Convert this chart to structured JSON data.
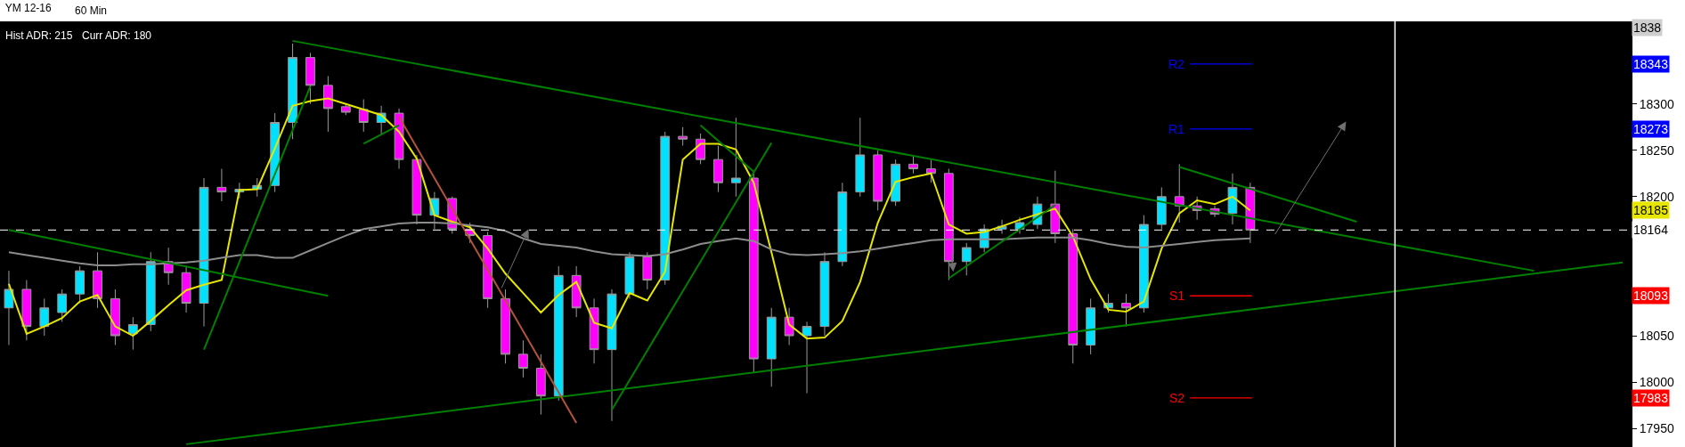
{
  "chart_data": {
    "type": "candlestick",
    "title": "YM 12-16",
    "subtitle": "60 Min",
    "categories": [
      null,
      null,
      null,
      null,
      null,
      null,
      null,
      null,
      null,
      null,
      null,
      null,
      null,
      null,
      null,
      null,
      null,
      null,
      null,
      null,
      null,
      null,
      null,
      null,
      null,
      null,
      null,
      null,
      null,
      null,
      null,
      null,
      null,
      null,
      null,
      null,
      null,
      null,
      null,
      null,
      null,
      null,
      null,
      null,
      null,
      null,
      null,
      null,
      null,
      null,
      null,
      null,
      null,
      null,
      null,
      null,
      null,
      null,
      null,
      null,
      null,
      null,
      null,
      null,
      null,
      null,
      null,
      null,
      null,
      null,
      null,
      null,
      null,
      null,
      null,
      null,
      null,
      null,
      null,
      null,
      null,
      null,
      null,
      null,
      null,
      null,
      null,
      null,
      null,
      null,
      null,
      null
    ],
    "ohlc": [
      [
        18080,
        18120,
        18040,
        18100
      ],
      [
        18100,
        18110,
        18045,
        18060
      ],
      [
        18060,
        18090,
        18050,
        18080
      ],
      [
        18075,
        18100,
        18065,
        18095
      ],
      [
        18095,
        18125,
        18085,
        18120
      ],
      [
        18120,
        18140,
        18080,
        18090
      ],
      [
        18090,
        18100,
        18040,
        18050
      ],
      [
        18052,
        18070,
        18035,
        18062
      ],
      [
        18062,
        18140,
        18055,
        18130
      ],
      [
        18130,
        18145,
        18105,
        18118
      ],
      [
        18118,
        18125,
        18075,
        18085
      ],
      [
        18085,
        18220,
        18060,
        18210
      ],
      [
        18210,
        18230,
        18195,
        18205
      ],
      [
        18205,
        18215,
        18198,
        18208
      ],
      [
        18208,
        18220,
        18200,
        18212
      ],
      [
        18212,
        18290,
        18205,
        18280
      ],
      [
        18280,
        18365,
        18262,
        18350
      ],
      [
        18350,
        18355,
        18300,
        18320
      ],
      [
        18320,
        18330,
        18270,
        18295
      ],
      [
        18297,
        18300,
        18288,
        18291
      ],
      [
        18294,
        18305,
        18270,
        18280
      ],
      [
        18280,
        18298,
        18268,
        18290
      ],
      [
        18290,
        18295,
        18230,
        18240
      ],
      [
        18240,
        18245,
        18170,
        18180
      ],
      [
        18180,
        18205,
        18165,
        18198
      ],
      [
        18198,
        18200,
        18160,
        18165
      ],
      [
        18165,
        18172,
        18150,
        18158
      ],
      [
        18158,
        18162,
        18080,
        18090
      ],
      [
        18090,
        18100,
        18020,
        18030
      ],
      [
        18030,
        18045,
        18005,
        18015
      ],
      [
        18015,
        18030,
        17965,
        17985
      ],
      [
        17985,
        18125,
        17980,
        18115
      ],
      [
        18115,
        18125,
        18070,
        18080
      ],
      [
        18080,
        18090,
        18020,
        18035
      ],
      [
        18035,
        18100,
        17958,
        18095
      ],
      [
        18095,
        18140,
        18090,
        18135
      ],
      [
        18135,
        18140,
        18100,
        18110
      ],
      [
        18110,
        18270,
        18105,
        18265
      ],
      [
        18265,
        18275,
        18255,
        18262
      ],
      [
        18262,
        18268,
        18235,
        18240
      ],
      [
        18240,
        18255,
        18205,
        18215
      ],
      [
        18215,
        18285,
        18200,
        18220
      ],
      [
        18220,
        18225,
        18010,
        18025
      ],
      [
        18025,
        18080,
        17995,
        18070
      ],
      [
        18070,
        18080,
        18040,
        18050
      ],
      [
        18050,
        18065,
        17988,
        18060
      ],
      [
        18060,
        18140,
        18050,
        18130
      ],
      [
        18130,
        18215,
        18125,
        18205
      ],
      [
        18205,
        18285,
        18200,
        18245
      ],
      [
        18245,
        18250,
        18185,
        18195
      ],
      [
        18195,
        18240,
        18190,
        18235
      ],
      [
        18235,
        18245,
        18225,
        18230
      ],
      [
        18230,
        18240,
        18215,
        18225
      ],
      [
        18225,
        18230,
        18110,
        18130
      ],
      [
        18130,
        18150,
        18115,
        18145
      ],
      [
        18145,
        18170,
        18140,
        18165
      ],
      [
        18165,
        18175,
        18160,
        18168
      ],
      [
        18165,
        18178,
        18160,
        18172
      ],
      [
        18170,
        18200,
        18165,
        18192
      ],
      [
        18192,
        18228,
        18150,
        18160
      ],
      [
        18160,
        18165,
        18020,
        18040
      ],
      [
        18040,
        18090,
        18030,
        18080
      ],
      [
        18080,
        18095,
        18075,
        18085
      ],
      [
        18085,
        18095,
        18060,
        18080
      ],
      [
        18080,
        18180,
        18075,
        18170
      ],
      [
        18170,
        18210,
        18165,
        18200
      ],
      [
        18200,
        18235,
        18172,
        18190
      ],
      [
        18190,
        18200,
        18175,
        18185
      ],
      [
        18187,
        18190,
        18178,
        18181
      ],
      [
        18182,
        18225,
        18170,
        18210
      ],
      [
        18210,
        18215,
        18150,
        18164
      ],
      null,
      null,
      null,
      null,
      null,
      null,
      null,
      null,
      null,
      null,
      null,
      null,
      null,
      null,
      null,
      null,
      null,
      null,
      null,
      null,
      null
    ],
    "colors": [
      "#00e1ff",
      "#ff00ff",
      "#00e1ff",
      "#00e1ff",
      "#00e1ff",
      "#ff00ff",
      "#ff00ff",
      "#00e1ff",
      "#00e1ff",
      "#ff00ff",
      "#ff00ff",
      "#00e1ff",
      "#ff00ff",
      "#00e1ff",
      "#00e1ff",
      "#00e1ff",
      "#00e1ff",
      "#ff00ff",
      "#ff00ff",
      "#ff00ff",
      "#ff00ff",
      "#00e1ff",
      "#ff00ff",
      "#ff00ff",
      "#00e1ff",
      "#ff00ff",
      "#ff00ff",
      "#ff00ff",
      "#ff00ff",
      "#ff00ff",
      "#ff00ff",
      "#00e1ff",
      "#ff00ff",
      "#ff00ff",
      "#00e1ff",
      "#00e1ff",
      "#ff00ff",
      "#00e1ff",
      "#ff00ff",
      "#ff00ff",
      "#ff00ff",
      "#00e1ff",
      "#ff00ff",
      "#00e1ff",
      "#ff00ff",
      "#00e1ff",
      "#00e1ff",
      "#00e1ff",
      "#00e1ff",
      "#ff00ff",
      "#00e1ff",
      "#ff00ff",
      "#ff00ff",
      "#ff00ff",
      "#00e1ff",
      "#00e1ff",
      "#00e1ff",
      "#00e1ff",
      "#00e1ff",
      "#ff00ff",
      "#ff00ff",
      "#00e1ff",
      "#00e1ff",
      "#ff00ff",
      "#00e1ff",
      "#00e1ff",
      "#ff00ff",
      "#ff00ff",
      "#ff00ff",
      "#00e1ff",
      "#ff00ff",
      null,
      null,
      null,
      null,
      null,
      null,
      null,
      null,
      null,
      null,
      null,
      null,
      null,
      null,
      null,
      null,
      null,
      null,
      null,
      null,
      null
    ],
    "series": [
      {
        "type": "line",
        "color": "#e6e600",
        "values": [
          18106,
          18052,
          18060,
          18069,
          18087,
          18094,
          18060,
          18050,
          18066,
          18083,
          18099,
          18105,
          18110,
          18207,
          18208,
          18252,
          18298,
          18303,
          18306,
          18300,
          18294,
          18288,
          18270,
          18241,
          18180,
          18173,
          18167,
          18144,
          18117,
          18096,
          18075,
          18094,
          18108,
          18064,
          18058,
          18096,
          18088,
          18119,
          18240,
          18257,
          18257,
          18251,
          18215,
          18140,
          18062,
          18047,
          18048,
          18066,
          18108,
          18172,
          18216,
          18221,
          18225,
          18170,
          18160,
          18162,
          18168,
          18175,
          18181,
          18187,
          18157,
          18111,
          18078,
          18076,
          18087,
          18144,
          18182,
          18196,
          18192,
          18200,
          18185,
          null,
          null,
          null,
          null,
          null,
          null,
          null,
          null,
          null,
          null,
          null,
          null,
          null,
          null,
          null,
          null,
          null,
          null,
          null,
          null,
          null
        ]
      },
      {
        "type": "line",
        "color": "#8c8c8c",
        "values": [
          18140,
          18137,
          18134,
          18131,
          18128,
          18126,
          18126,
          18127,
          18127,
          18128,
          18129,
          18131,
          18134,
          18137,
          18137,
          18134,
          18134,
          18142,
          18150,
          18158,
          18165,
          18168,
          18171,
          18172,
          18172,
          18171,
          18169,
          18167,
          18163,
          18155,
          18149,
          18147,
          18145,
          18141,
          18138,
          18137,
          18136,
          18138,
          18143,
          18149,
          18152,
          18155,
          18152,
          18143,
          18138,
          18137,
          18138,
          18139,
          18141,
          18144,
          18147,
          18150,
          18153,
          18154,
          18154,
          18154,
          18154,
          18155,
          18156,
          18156,
          18156,
          18153,
          18149,
          18146,
          18145,
          18147,
          18149,
          18151,
          18153,
          18154,
          18155,
          null,
          null,
          null,
          null,
          null,
          null,
          null,
          null,
          null,
          null,
          null,
          null,
          null,
          null,
          null,
          null,
          null,
          null,
          null,
          null,
          null
        ]
      },
      {
        "type": "line",
        "color": "#008000",
        "values": [
          null,
          null,
          null,
          null,
          null,
          null,
          null,
          null,
          null,
          null,
          null,
          null,
          null,
          null,
          null,
          null,
          18368,
          null,
          null,
          null,
          null,
          null,
          null,
          null,
          null,
          null,
          null,
          null,
          null,
          null,
          null,
          null,
          null,
          null,
          null,
          null,
          null,
          null,
          null,
          null,
          null,
          null,
          null,
          null,
          null,
          null,
          null,
          null,
          null,
          null,
          null,
          null,
          null,
          null,
          null,
          null,
          null,
          null,
          null,
          null,
          null,
          null,
          null,
          null,
          null,
          null,
          null,
          null,
          null,
          null,
          null,
          null,
          null,
          null,
          null,
          null,
          null,
          null,
          null,
          null,
          null,
          null,
          null,
          null,
          null,
          null,
          18120,
          null,
          null,
          null,
          null,
          null
        ]
      },
      {
        "type": "line",
        "color": "#008000",
        "values": [
          null,
          null,
          null,
          null,
          null,
          null,
          null,
          null,
          null,
          null,
          17933,
          null,
          null,
          null,
          null,
          null,
          null,
          null,
          null,
          null,
          null,
          null,
          null,
          null,
          null,
          null,
          null,
          null,
          null,
          null,
          null,
          null,
          null,
          null,
          null,
          null,
          null,
          null,
          null,
          null,
          null,
          null,
          null,
          null,
          null,
          null,
          null,
          null,
          null,
          null,
          null,
          null,
          null,
          null,
          null,
          null,
          null,
          null,
          null,
          null,
          null,
          null,
          null,
          null,
          null,
          null,
          null,
          null,
          null,
          null,
          null,
          null,
          null,
          null,
          null,
          null,
          null,
          null,
          null,
          null,
          null,
          null,
          null,
          null,
          null,
          null,
          null,
          null,
          null,
          null,
          null,
          18129
        ]
      },
      {
        "type": "line",
        "color": "#008000",
        "values": [
          18164,
          null,
          null,
          null,
          null,
          null,
          null,
          null,
          null,
          null,
          null,
          null,
          null,
          null,
          null,
          null,
          null,
          null,
          18093,
          null,
          null,
          null,
          null,
          null,
          null,
          null,
          null,
          null,
          null,
          null,
          null,
          null,
          null,
          null,
          null,
          null,
          null,
          null,
          null,
          null,
          null,
          null,
          null,
          null,
          null,
          null,
          null,
          null,
          null,
          null,
          null,
          null,
          null,
          null,
          null,
          null,
          null,
          null,
          null,
          null,
          null,
          null,
          null,
          null,
          null,
          null,
          null,
          null,
          null,
          null,
          null,
          null,
          null,
          null,
          null,
          null,
          null,
          null,
          null,
          null,
          null,
          null,
          null,
          null,
          null,
          null,
          null,
          null,
          null,
          null,
          null,
          null
        ]
      },
      {
        "type": "line",
        "color": "#008000",
        "values": [
          null,
          null,
          null,
          null,
          null,
          null,
          null,
          null,
          null,
          null,
          null,
          18035,
          null,
          null,
          null,
          null,
          null,
          18319,
          null,
          null,
          null,
          null,
          null,
          null,
          null,
          null,
          null,
          null,
          null,
          null,
          null,
          null,
          null,
          null,
          null,
          null,
          null,
          null,
          null,
          null,
          null,
          null,
          null,
          null,
          null,
          null,
          null,
          null,
          null,
          null,
          null,
          null,
          null,
          null,
          null,
          null,
          null,
          null,
          null,
          null,
          null,
          null,
          null,
          null,
          null,
          null,
          null,
          null,
          null,
          null,
          null,
          null,
          null,
          null,
          null,
          null,
          null,
          null,
          null,
          null,
          null,
          null,
          null,
          null,
          null,
          null,
          null,
          null,
          null,
          null,
          null,
          null
        ]
      },
      {
        "type": "line",
        "color": "#008000",
        "values": [
          null,
          null,
          null,
          null,
          null,
          null,
          null,
          null,
          null,
          null,
          null,
          null,
          null,
          null,
          null,
          null,
          null,
          null,
          null,
          null,
          null,
          null,
          null,
          null,
          null,
          null,
          null,
          null,
          null,
          null,
          null,
          null,
          null,
          null,
          17970,
          null,
          null,
          null,
          null,
          null,
          null,
          null,
          null,
          18258,
          null,
          null,
          null,
          null,
          null,
          null,
          null,
          null,
          null,
          null,
          null,
          null,
          null,
          null,
          null,
          null,
          null,
          null,
          null,
          null,
          null,
          null,
          null,
          null,
          null,
          null,
          null,
          null,
          null,
          null,
          null,
          null,
          null,
          null,
          null,
          null,
          null,
          null,
          null,
          null,
          null,
          null,
          null,
          null,
          null,
          null,
          null,
          null
        ]
      },
      {
        "type": "line",
        "color": "#008000",
        "values": [
          null,
          null,
          null,
          null,
          null,
          null,
          null,
          null,
          null,
          null,
          null,
          null,
          null,
          null,
          null,
          null,
          null,
          null,
          null,
          null,
          null,
          null,
          null,
          null,
          null,
          null,
          null,
          null,
          null,
          null,
          null,
          null,
          null,
          null,
          null,
          null,
          null,
          null,
          null,
          null,
          null,
          null,
          null,
          null,
          null,
          null,
          null,
          null,
          null,
          null,
          null,
          null,
          null,
          null,
          null,
          null,
          null,
          null,
          null,
          null,
          null,
          null,
          null,
          null,
          null,
          null,
          18232,
          null,
          null,
          null,
          null,
          null,
          null,
          null,
          null,
          null,
          18173,
          null,
          null,
          null,
          null,
          null,
          null,
          null,
          null,
          null,
          null,
          null,
          null,
          null,
          null,
          null
        ]
      },
      {
        "type": "line",
        "color": "#008000",
        "values": [
          null,
          null,
          null,
          null,
          null,
          null,
          null,
          null,
          null,
          null,
          null,
          null,
          null,
          null,
          null,
          null,
          null,
          null,
          null,
          null,
          null,
          null,
          null,
          null,
          null,
          null,
          null,
          null,
          null,
          null,
          null,
          null,
          null,
          null,
          null,
          null,
          null,
          null,
          null,
          null,
          null,
          null,
          null,
          null,
          null,
          null,
          null,
          null,
          null,
          null,
          null,
          null,
          null,
          18112,
          null,
          null,
          null,
          null,
          null,
          18191,
          null,
          null,
          null,
          null,
          null,
          null,
          null,
          null,
          null,
          null,
          null,
          null,
          null,
          null,
          null,
          null,
          null,
          null,
          null,
          null,
          null,
          null,
          null,
          null,
          null,
          null,
          null,
          null,
          null,
          null,
          null,
          null
        ]
      },
      {
        "type": "line",
        "color": "#008000",
        "values": [
          null,
          null,
          null,
          null,
          null,
          null,
          null,
          null,
          null,
          null,
          null,
          null,
          null,
          null,
          null,
          null,
          null,
          null,
          null,
          null,
          18257,
          null,
          18277,
          null,
          null,
          null,
          null,
          null,
          null,
          null,
          null,
          null,
          null,
          null,
          null,
          null,
          null,
          null,
          null,
          null,
          null,
          null,
          null,
          null,
          null,
          null,
          null,
          null,
          null,
          null,
          null,
          null,
          null,
          null,
          null,
          null,
          null,
          null,
          null,
          null,
          null,
          null,
          null,
          null,
          null,
          null,
          null,
          null,
          null,
          null,
          null,
          null,
          null,
          null,
          null,
          null,
          null,
          null,
          null,
          null,
          null,
          null,
          null,
          null,
          null,
          null,
          null,
          null,
          null,
          null,
          null,
          null
        ]
      },
      {
        "type": "line",
        "color": "#008000",
        "values": [
          null,
          null,
          null,
          null,
          null,
          null,
          null,
          null,
          null,
          null,
          null,
          null,
          null,
          null,
          null,
          null,
          null,
          null,
          null,
          null,
          null,
          null,
          null,
          null,
          null,
          null,
          null,
          null,
          null,
          null,
          null,
          null,
          null,
          null,
          null,
          null,
          null,
          null,
          null,
          18277,
          null,
          null,
          18227,
          null,
          null,
          null,
          null,
          null,
          null,
          null,
          null,
          null,
          null,
          null,
          null,
          null,
          null,
          null,
          null,
          null,
          null,
          null,
          null,
          null,
          null,
          null,
          null,
          null,
          null,
          null,
          null,
          null,
          null,
          null,
          null,
          null,
          null,
          null,
          null,
          null,
          null,
          null,
          null,
          null,
          null,
          null,
          null,
          null,
          null,
          null,
          null,
          null
        ]
      },
      {
        "type": "line",
        "color": "#b5523b",
        "values": [
          null,
          null,
          null,
          null,
          null,
          null,
          null,
          null,
          null,
          null,
          null,
          null,
          null,
          null,
          null,
          null,
          null,
          null,
          null,
          null,
          null,
          null,
          18286,
          null,
          null,
          null,
          null,
          null,
          null,
          null,
          null,
          null,
          17956,
          null,
          null,
          null,
          null,
          null,
          null,
          null,
          null,
          null,
          null,
          null,
          null,
          null,
          null,
          null,
          null,
          null,
          null,
          null,
          null,
          null,
          null,
          null,
          null,
          null,
          null,
          null,
          null,
          null,
          null,
          null,
          null,
          null,
          null,
          null,
          null,
          null,
          null,
          null,
          null,
          null,
          null,
          null,
          null,
          null,
          null,
          null,
          null,
          null,
          null,
          null,
          null,
          null,
          null,
          null,
          null,
          null,
          null,
          null
        ]
      }
    ],
    "ref_lines": [
      {
        "axis": "y",
        "value": 18343,
        "label": "R2",
        "color": "#0000ff"
      },
      {
        "axis": "y",
        "value": 18273,
        "label": "R1",
        "color": "#0000ff"
      },
      {
        "axis": "y",
        "value": 18093,
        "label": "S1",
        "color": "#ff0000"
      },
      {
        "axis": "y",
        "value": 17983,
        "label": "S2",
        "color": "#ff0000"
      },
      {
        "axis": "y",
        "value": 18164,
        "color": "#ffffff",
        "line_style": "dashed"
      }
    ],
    "annotations": [
      "Hist ADR: 215",
      "Curr ADR: 180",
      {
        "text": "1838",
        "y": 18382
      },
      {
        "text": "18343",
        "y": 18343
      },
      {
        "text": "18185",
        "y": 18185
      },
      {
        "text": "18273",
        "y": 18273
      },
      {
        "text": "18164",
        "y": 18164
      },
      {
        "text": "18093",
        "y": 18093
      },
      {
        "text": "17983",
        "y": 17983
      }
    ],
    "ylim": [
      17930,
      18389
    ],
    "yticks": [
      17950,
      18000,
      18050,
      18200,
      18250,
      18300
    ],
    "tick_labels": "y"
  }
}
